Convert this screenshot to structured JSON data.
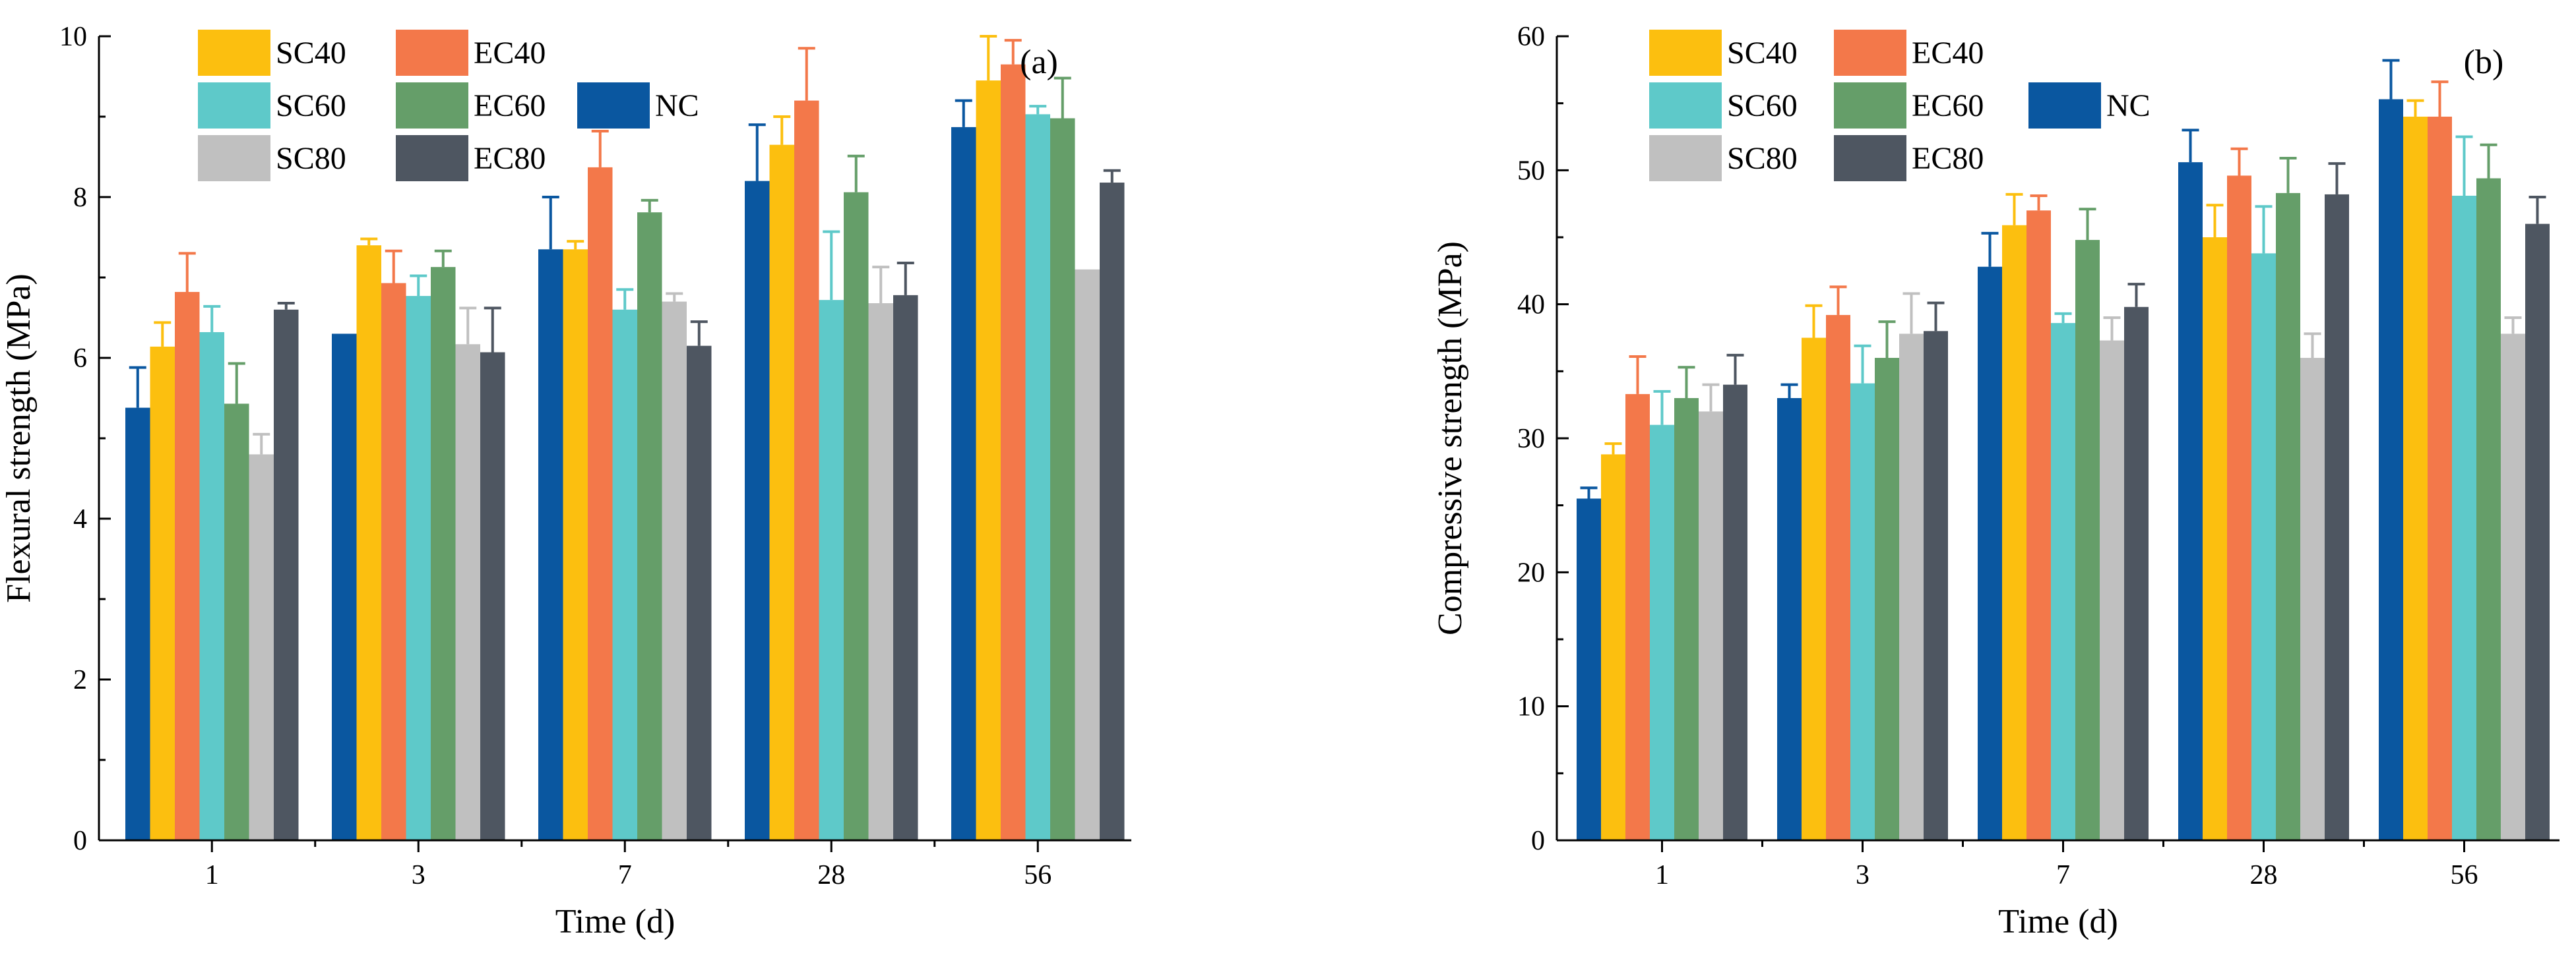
{
  "chart_data": [
    {
      "type": "bar",
      "panel_label": "(a)",
      "xlabel": "Time (d)",
      "ylabel": "Flexural strength (MPa)",
      "categories": [
        "1",
        "3",
        "7",
        "28",
        "56"
      ],
      "ylim": [
        0,
        10
      ],
      "yticks": [
        "0",
        "2",
        "4",
        "6",
        "8",
        "10"
      ],
      "legend_position": "top-left",
      "series": [
        {
          "name": "NC",
          "color": "#0a57a0",
          "values": [
            5.38,
            6.3,
            7.35,
            8.2,
            8.87
          ],
          "errors": [
            0.5,
            0.0,
            0.65,
            0.7,
            0.33
          ]
        },
        {
          "name": "SC40",
          "color": "#fcbf0f",
          "values": [
            6.14,
            7.4,
            7.35,
            8.65,
            9.45
          ],
          "errors": [
            0.3,
            0.08,
            0.1,
            0.35,
            0.55
          ]
        },
        {
          "name": "EC40",
          "color": "#f3784a",
          "values": [
            6.82,
            6.93,
            8.37,
            9.2,
            9.65
          ],
          "errors": [
            0.48,
            0.4,
            0.45,
            0.65,
            0.3
          ]
        },
        {
          "name": "SC60",
          "color": "#5ec9c9",
          "values": [
            6.32,
            6.77,
            6.6,
            6.72,
            9.03
          ],
          "errors": [
            0.32,
            0.25,
            0.25,
            0.85,
            0.1
          ]
        },
        {
          "name": "EC60",
          "color": "#659e69",
          "values": [
            5.43,
            7.13,
            7.81,
            8.06,
            8.98
          ],
          "errors": [
            0.5,
            0.2,
            0.15,
            0.45,
            0.5
          ]
        },
        {
          "name": "SC80",
          "color": "#c0c0c0",
          "values": [
            4.8,
            6.17,
            6.7,
            6.68,
            7.1
          ],
          "errors": [
            0.25,
            0.45,
            0.1,
            0.45,
            0.0
          ]
        },
        {
          "name": "EC80",
          "color": "#4e5661",
          "values": [
            6.6,
            6.07,
            6.15,
            6.78,
            8.18
          ],
          "errors": [
            0.08,
            0.55,
            0.3,
            0.4,
            0.15
          ]
        }
      ]
    },
    {
      "type": "bar",
      "panel_label": "(b)",
      "xlabel": "Time (d)",
      "ylabel": "Compressive strength (MPa)",
      "categories": [
        "1",
        "3",
        "7",
        "28",
        "56"
      ],
      "ylim": [
        0,
        60
      ],
      "yticks": [
        "0",
        "10",
        "20",
        "30",
        "40",
        "50",
        "60"
      ],
      "legend_position": "top-left",
      "series": [
        {
          "name": "NC",
          "color": "#0a57a0",
          "values": [
            25.5,
            33.0,
            42.8,
            50.6,
            55.3
          ],
          "errors": [
            0.8,
            1.0,
            2.5,
            2.4,
            2.9
          ]
        },
        {
          "name": "SC40",
          "color": "#fcbf0f",
          "values": [
            28.8,
            37.5,
            45.9,
            45.0,
            54.0
          ],
          "errors": [
            0.8,
            2.4,
            2.3,
            2.4,
            1.2
          ]
        },
        {
          "name": "EC40",
          "color": "#f3784a",
          "values": [
            33.3,
            39.2,
            47.0,
            49.6,
            54.0
          ],
          "errors": [
            2.8,
            2.1,
            1.1,
            2.0,
            2.6
          ]
        },
        {
          "name": "SC60",
          "color": "#5ec9c9",
          "values": [
            31.0,
            34.1,
            38.6,
            43.8,
            48.1
          ],
          "errors": [
            2.5,
            2.8,
            0.7,
            3.5,
            4.4
          ]
        },
        {
          "name": "EC60",
          "color": "#659e69",
          "values": [
            33.0,
            36.0,
            44.8,
            48.3,
            49.4
          ],
          "errors": [
            2.3,
            2.7,
            2.3,
            2.6,
            2.5
          ]
        },
        {
          "name": "SC80",
          "color": "#c0c0c0",
          "values": [
            32.0,
            37.8,
            37.3,
            36.0,
            37.8
          ],
          "errors": [
            2.0,
            3.0,
            1.7,
            1.8,
            1.2
          ]
        },
        {
          "name": "EC80",
          "color": "#4e5661",
          "values": [
            34.0,
            38.0,
            39.8,
            48.2,
            46.0
          ],
          "errors": [
            2.2,
            2.1,
            1.7,
            2.3,
            2.0
          ]
        }
      ]
    }
  ]
}
